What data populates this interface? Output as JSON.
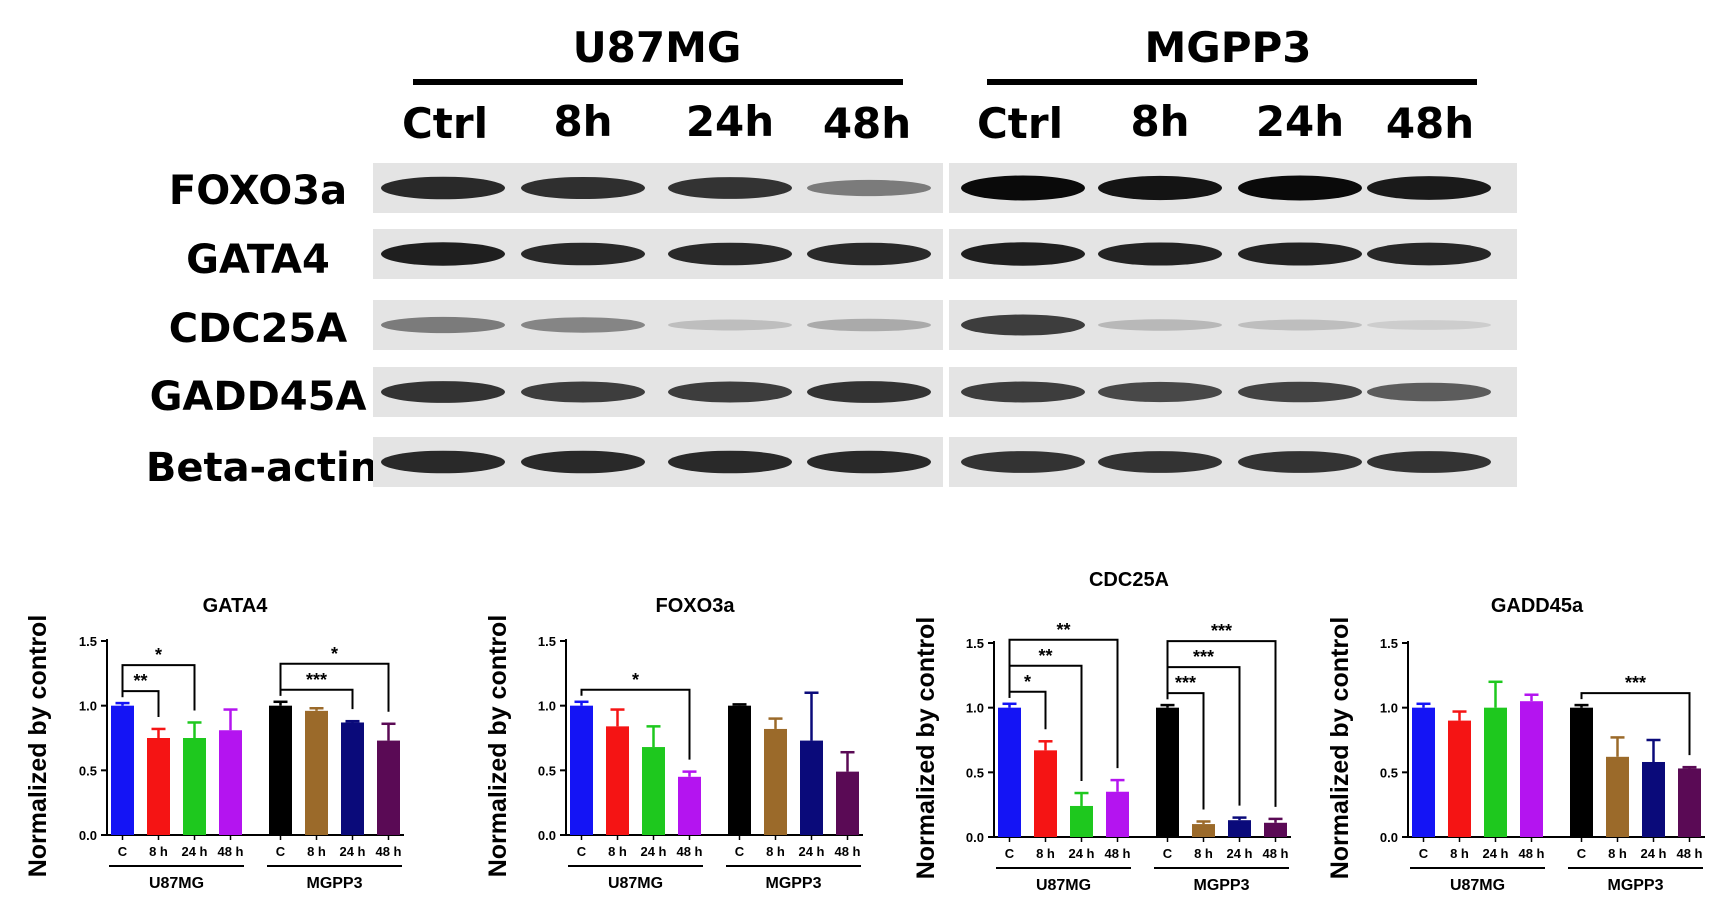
{
  "blot": {
    "groups": [
      {
        "name": "U87MG",
        "lanes": [
          "Ctrl",
          "8h",
          "24h",
          "48h"
        ]
      },
      {
        "name": "MGPP3",
        "lanes": [
          "Ctrl",
          "8h",
          "24h",
          "48h"
        ]
      }
    ],
    "rows": [
      {
        "label": "FOXO3a",
        "intensity": [
          0.85,
          0.82,
          0.8,
          0.45,
          1.0,
          0.95,
          1.0,
          0.92
        ]
      },
      {
        "label": "GATA4",
        "intensity": [
          0.9,
          0.85,
          0.85,
          0.85,
          0.9,
          0.88,
          0.88,
          0.86
        ]
      },
      {
        "label": "CDC25A",
        "intensity": [
          0.45,
          0.4,
          0.12,
          0.22,
          0.75,
          0.15,
          0.12,
          0.05
        ]
      },
      {
        "label": "GADD45A",
        "intensity": [
          0.8,
          0.75,
          0.75,
          0.8,
          0.75,
          0.7,
          0.72,
          0.6
        ]
      },
      {
        "label": "Beta-actin",
        "intensity": [
          0.85,
          0.85,
          0.85,
          0.85,
          0.8,
          0.8,
          0.8,
          0.8
        ]
      }
    ]
  },
  "chart_data": [
    {
      "type": "bar",
      "title": "GATA4",
      "ylabel": "Normalized by control",
      "ylim": [
        0,
        1.5
      ],
      "yticks": [
        "0.0",
        "0.5",
        "1.0",
        "1.5"
      ],
      "categories": [
        "C",
        "8 h",
        "24 h",
        "48 h",
        "C",
        "8 h",
        "24 h",
        "48 h"
      ],
      "groups": [
        "U87MG",
        "MGPP3"
      ],
      "values": [
        1.0,
        0.75,
        0.75,
        0.81,
        1.0,
        0.96,
        0.87,
        0.73
      ],
      "errors": [
        0.02,
        0.07,
        0.12,
        0.16,
        0.03,
        0.02,
        0.01,
        0.13
      ],
      "colors": [
        "#1414f5",
        "#f51414",
        "#1ec81e",
        "#b414f0",
        "#000000",
        "#9b6a2a",
        "#0a0a7a",
        "#5a0a55"
      ],
      "significance": [
        {
          "from": 0,
          "to": 1,
          "label": "**"
        },
        {
          "from": 0,
          "to": 2,
          "label": "*"
        },
        {
          "from": 4,
          "to": 6,
          "label": "***"
        },
        {
          "from": 4,
          "to": 7,
          "label": "*"
        }
      ]
    },
    {
      "type": "bar",
      "title": "FOXO3a",
      "ylabel": "Normalized by control",
      "ylim": [
        0,
        1.5
      ],
      "yticks": [
        "0.0",
        "0.5",
        "1.0",
        "1.5"
      ],
      "categories": [
        "C",
        "8 h",
        "24 h",
        "48 h",
        "C",
        "8 h",
        "24 h",
        "48 h"
      ],
      "groups": [
        "U87MG",
        "MGPP3"
      ],
      "values": [
        1.0,
        0.84,
        0.68,
        0.45,
        1.0,
        0.82,
        0.73,
        0.49
      ],
      "errors": [
        0.03,
        0.13,
        0.16,
        0.04,
        0.01,
        0.08,
        0.37,
        0.15
      ],
      "colors": [
        "#1414f5",
        "#f51414",
        "#1ec81e",
        "#b414f0",
        "#000000",
        "#9b6a2a",
        "#0a0a7a",
        "#5a0a55"
      ],
      "significance": [
        {
          "from": 0,
          "to": 3,
          "label": "*"
        }
      ]
    },
    {
      "type": "bar",
      "title": "CDC25A",
      "ylabel": "Normalized by control",
      "ylim": [
        0,
        1.5
      ],
      "yticks": [
        "0.0",
        "0.5",
        "1.0",
        "1.5"
      ],
      "categories": [
        "C",
        "8 h",
        "24 h",
        "48 h",
        "C",
        "8 h",
        "24 h",
        "48 h"
      ],
      "groups": [
        "U87MG",
        "MGPP3"
      ],
      "values": [
        1.0,
        0.67,
        0.24,
        0.35,
        1.0,
        0.1,
        0.13,
        0.11
      ],
      "errors": [
        0.03,
        0.07,
        0.1,
        0.09,
        0.02,
        0.02,
        0.02,
        0.03
      ],
      "colors": [
        "#1414f5",
        "#f51414",
        "#1ec81e",
        "#b414f0",
        "#000000",
        "#9b6a2a",
        "#0a0a7a",
        "#5a0a55"
      ],
      "significance": [
        {
          "from": 0,
          "to": 1,
          "label": "*"
        },
        {
          "from": 0,
          "to": 2,
          "label": "**"
        },
        {
          "from": 0,
          "to": 3,
          "label": "**"
        },
        {
          "from": 4,
          "to": 5,
          "label": "***"
        },
        {
          "from": 4,
          "to": 6,
          "label": "***"
        },
        {
          "from": 4,
          "to": 7,
          "label": "***"
        }
      ]
    },
    {
      "type": "bar",
      "title": "GADD45a",
      "ylabel": "Normalized by control",
      "ylim": [
        0,
        1.5
      ],
      "yticks": [
        "0.0",
        "0.5",
        "1.0",
        "1.5"
      ],
      "categories": [
        "C",
        "8 h",
        "24 h",
        "48 h",
        "C",
        "8 h",
        "24 h",
        "48 h"
      ],
      "groups": [
        "U87MG",
        "MGPP3"
      ],
      "values": [
        1.0,
        0.9,
        1.0,
        1.05,
        1.0,
        0.62,
        0.58,
        0.53
      ],
      "errors": [
        0.03,
        0.07,
        0.2,
        0.05,
        0.02,
        0.15,
        0.17,
        0.01
      ],
      "colors": [
        "#1414f5",
        "#f51414",
        "#1ec81e",
        "#b414f0",
        "#000000",
        "#9b6a2a",
        "#0a0a7a",
        "#5a0a55"
      ],
      "significance": [
        {
          "from": 4,
          "to": 7,
          "label": "***"
        }
      ]
    }
  ]
}
